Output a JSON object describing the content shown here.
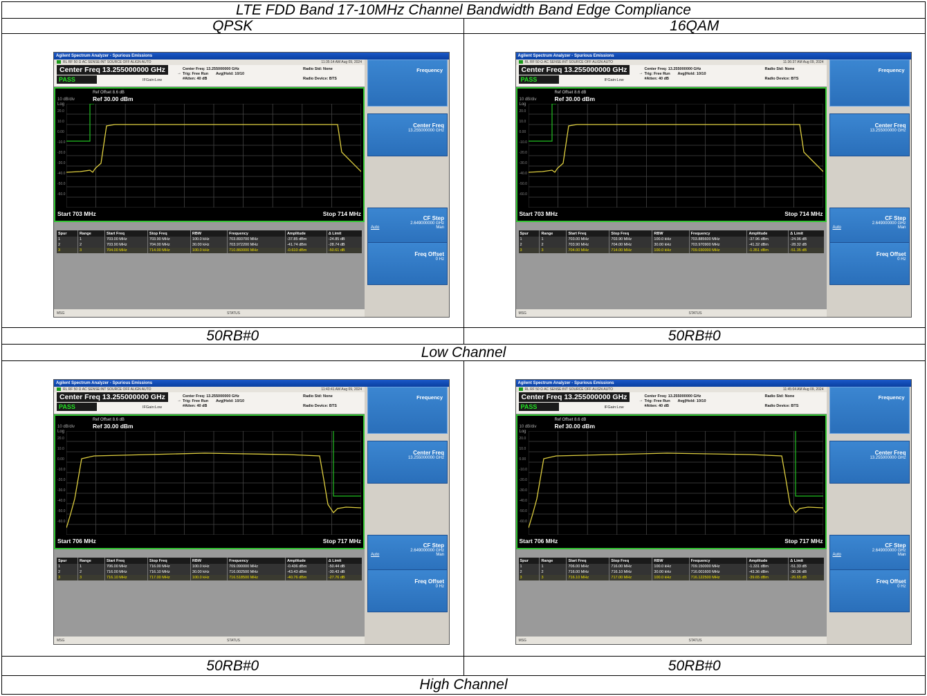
{
  "title": "LTE FDD Band 17-10MHz Channel Bandwidth Band Edge Compliance",
  "col_headers": [
    "QPSK",
    "16QAM"
  ],
  "rb_labels": [
    "50RB#0",
    "50RB#0",
    "50RB#0",
    "50RB#0"
  ],
  "channel_labels": [
    "Low Channel",
    "High Channel"
  ],
  "analyzer_common": {
    "window_title": "Agilent Spectrum Analyzer - Spurious Emissions",
    "status_bar": "RL    RF    50 Ω  AC    SENSE:INT SOURCE OFF    ALIGN AUTO",
    "center_freq": "Center Freq 13.255000000 GHz",
    "pass": "PASS",
    "if_gain": "IFGain:Low",
    "info_center": "Center Freq: 13.255000000 GHz",
    "info_trig": "Trig: Free Run",
    "info_avg": "Avg|Hold: 10/10",
    "info_atten": "#Atten: 40 dB",
    "radio_std": "Radio Std: None",
    "radio_device": "Radio Device: BTS",
    "ref_offset": "Ref Offset 8.6 dB",
    "ref_level": "Ref 30.00 dBm",
    "scale": "10 dB/div",
    "log": "Log",
    "y_ticks": [
      "20.0",
      "10.0",
      "0.00",
      "-10.0",
      "-20.0",
      "-30.0",
      "-40.0",
      "-50.0",
      "-60.0"
    ],
    "menu_title": "Frequency",
    "key_center_freq": "Center Freq",
    "key_center_freq_val": "13.255000000 GHz",
    "key_cf_step": "CF Step",
    "key_cf_step_val": "2.649000000 GHz",
    "key_auto": "Auto",
    "key_man": "Man",
    "key_freq_offset": "Freq Offset",
    "key_freq_offset_val": "0 Hz",
    "msg": "MSG",
    "status": "STATUS",
    "table_headers": [
      "Spur",
      "Range",
      "Start Freq",
      "Stop Freq",
      "RBW",
      "Frequency",
      "Amplitude",
      "Δ Limit"
    ]
  },
  "screens": [
    {
      "time": "11:35:14 AM Aug 09, 2024",
      "start": "Start  703 MHz",
      "stop": "Stop 714 MHz",
      "rows": [
        [
          "1",
          "1",
          "703.00 MHz",
          "703.90 MHz",
          "100.0 kHz",
          "703.893700 MHz",
          "-37.85 dBm",
          "-24.85 dB"
        ],
        [
          "2",
          "2",
          "703.90 MHz",
          "704.00 MHz",
          "30.00 kHz",
          "703.972200 MHz",
          "-41.74 dBm",
          "-28.74 dB"
        ],
        [
          "3",
          "3",
          "704.00 MHz",
          "714.00 MHz",
          "100.0 kHz",
          "710.860000 MHz",
          "-0.610 dBm",
          "-50.61 dB"
        ]
      ]
    },
    {
      "time": "11:36:37 AM Aug 09, 2024",
      "start": "Start  703 MHz",
      "stop": "Stop 714 MHz",
      "rows": [
        [
          "1",
          "1",
          "703.00 MHz",
          "703.90 MHz",
          "100.0 kHz",
          "703.885600 MHz",
          "-37.96 dBm",
          "-24.96 dB"
        ],
        [
          "2",
          "2",
          "703.90 MHz",
          "704.00 MHz",
          "30.00 kHz",
          "703.970900 MHz",
          "-41.32 dBm",
          "-28.32 dB"
        ],
        [
          "3",
          "3",
          "704.00 MHz",
          "714.00 MHz",
          "100.0 kHz",
          "709.030000 MHz",
          "-1.351 dBm",
          "-51.35 dB"
        ]
      ]
    },
    {
      "time": "11:43:41 AM Aug 09, 2024",
      "start": "Start  706 MHz",
      "stop": "Stop 717 MHz",
      "rows": [
        [
          "1",
          "1",
          "706.00 MHz",
          "716.00 MHz",
          "100.0 kHz",
          "709.090000 MHz",
          "-0.436 dBm",
          "-50.44 dB"
        ],
        [
          "2",
          "2",
          "716.00 MHz",
          "716.10 MHz",
          "30.00 kHz",
          "716.002500 MHz",
          "-43.43 dBm",
          "-30.43 dB"
        ],
        [
          "3",
          "3",
          "716.10 MHz",
          "717.00 MHz",
          "100.0 kHz",
          "716.518500 MHz",
          "-40.76 dBm",
          "-27.76 dB"
        ]
      ]
    },
    {
      "time": "11:45:04 AM Aug 09, 2024",
      "start": "Start  706 MHz",
      "stop": "Stop 717 MHz",
      "rows": [
        [
          "1",
          "1",
          "706.00 MHz",
          "716.00 MHz",
          "100.0 kHz",
          "709.150000 MHz",
          "-1.331 dBm",
          "-51.33 dB"
        ],
        [
          "2",
          "2",
          "716.00 MHz",
          "716.10 MHz",
          "30.00 kHz",
          "716.001600 MHz",
          "-43.36 dBm",
          "-30.36 dB"
        ],
        [
          "3",
          "3",
          "716.10 MHz",
          "717.00 MHz",
          "100.0 kHz",
          "716.122500 MHz",
          "-39.65 dBm",
          "-26.65 dB"
        ]
      ]
    }
  ],
  "colors": {
    "trace": "#e0d040",
    "limit": "#22c022",
    "grid": "#444444",
    "border": "#33c633"
  }
}
